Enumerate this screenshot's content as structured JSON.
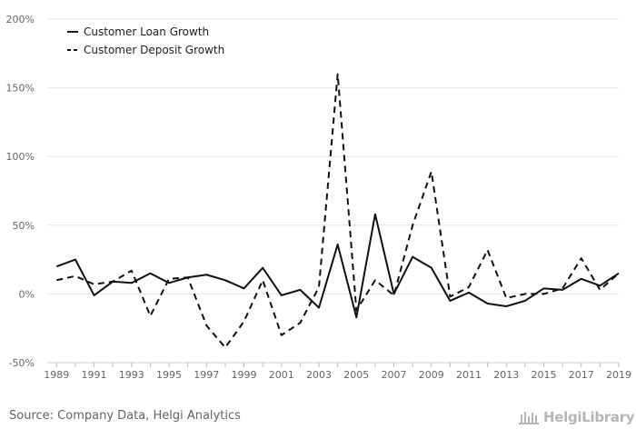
{
  "chart_data": {
    "type": "line",
    "title": "",
    "xlabel": "",
    "ylabel": "",
    "x": [
      1989,
      1990,
      1991,
      1992,
      1993,
      1994,
      1995,
      1996,
      1997,
      1998,
      1999,
      2000,
      2001,
      2002,
      2003,
      2004,
      2005,
      2006,
      2007,
      2008,
      2009,
      2010,
      2011,
      2012,
      2013,
      2014,
      2015,
      2016,
      2017,
      2018,
      2019
    ],
    "xtick_labels": [
      "1989",
      "1991",
      "1993",
      "1995",
      "1997",
      "1999",
      "2001",
      "2003",
      "2005",
      "2007",
      "2009",
      "2011",
      "2013",
      "2015",
      "2017",
      "2019"
    ],
    "ytick_values": [
      -50,
      0,
      50,
      100,
      150,
      200
    ],
    "ytick_labels": [
      "-50%",
      "0%",
      "50%",
      "100%",
      "150%",
      "200%"
    ],
    "ylim": [
      -50,
      200
    ],
    "xlim": [
      1988.5,
      2019
    ],
    "grid": true,
    "legend_position": "top-left",
    "series": [
      {
        "name": "Customer Loan Growth",
        "style": "solid",
        "color": "#111111",
        "values": [
          20,
          25,
          -1,
          9,
          8,
          15,
          8,
          12,
          14,
          10,
          4,
          19,
          -1,
          3,
          -10,
          36,
          -17,
          58,
          0,
          27,
          19,
          -5,
          1,
          -7,
          -9,
          -5,
          4,
          3,
          11,
          6,
          15
        ]
      },
      {
        "name": "Customer Deposit Growth",
        "style": "dashed",
        "color": "#111111",
        "values": [
          10,
          13,
          7,
          9,
          17,
          -16,
          11,
          12,
          -23,
          -39,
          -20,
          10,
          -30,
          -21,
          5,
          160,
          -12,
          10,
          -1,
          50,
          89,
          -2,
          5,
          32,
          -3,
          0,
          0,
          4,
          26,
          3,
          15
        ]
      }
    ]
  },
  "footer": {
    "source": "Source: Company Data, Helgi Analytics",
    "logo_text": "HelgiLibrary"
  }
}
